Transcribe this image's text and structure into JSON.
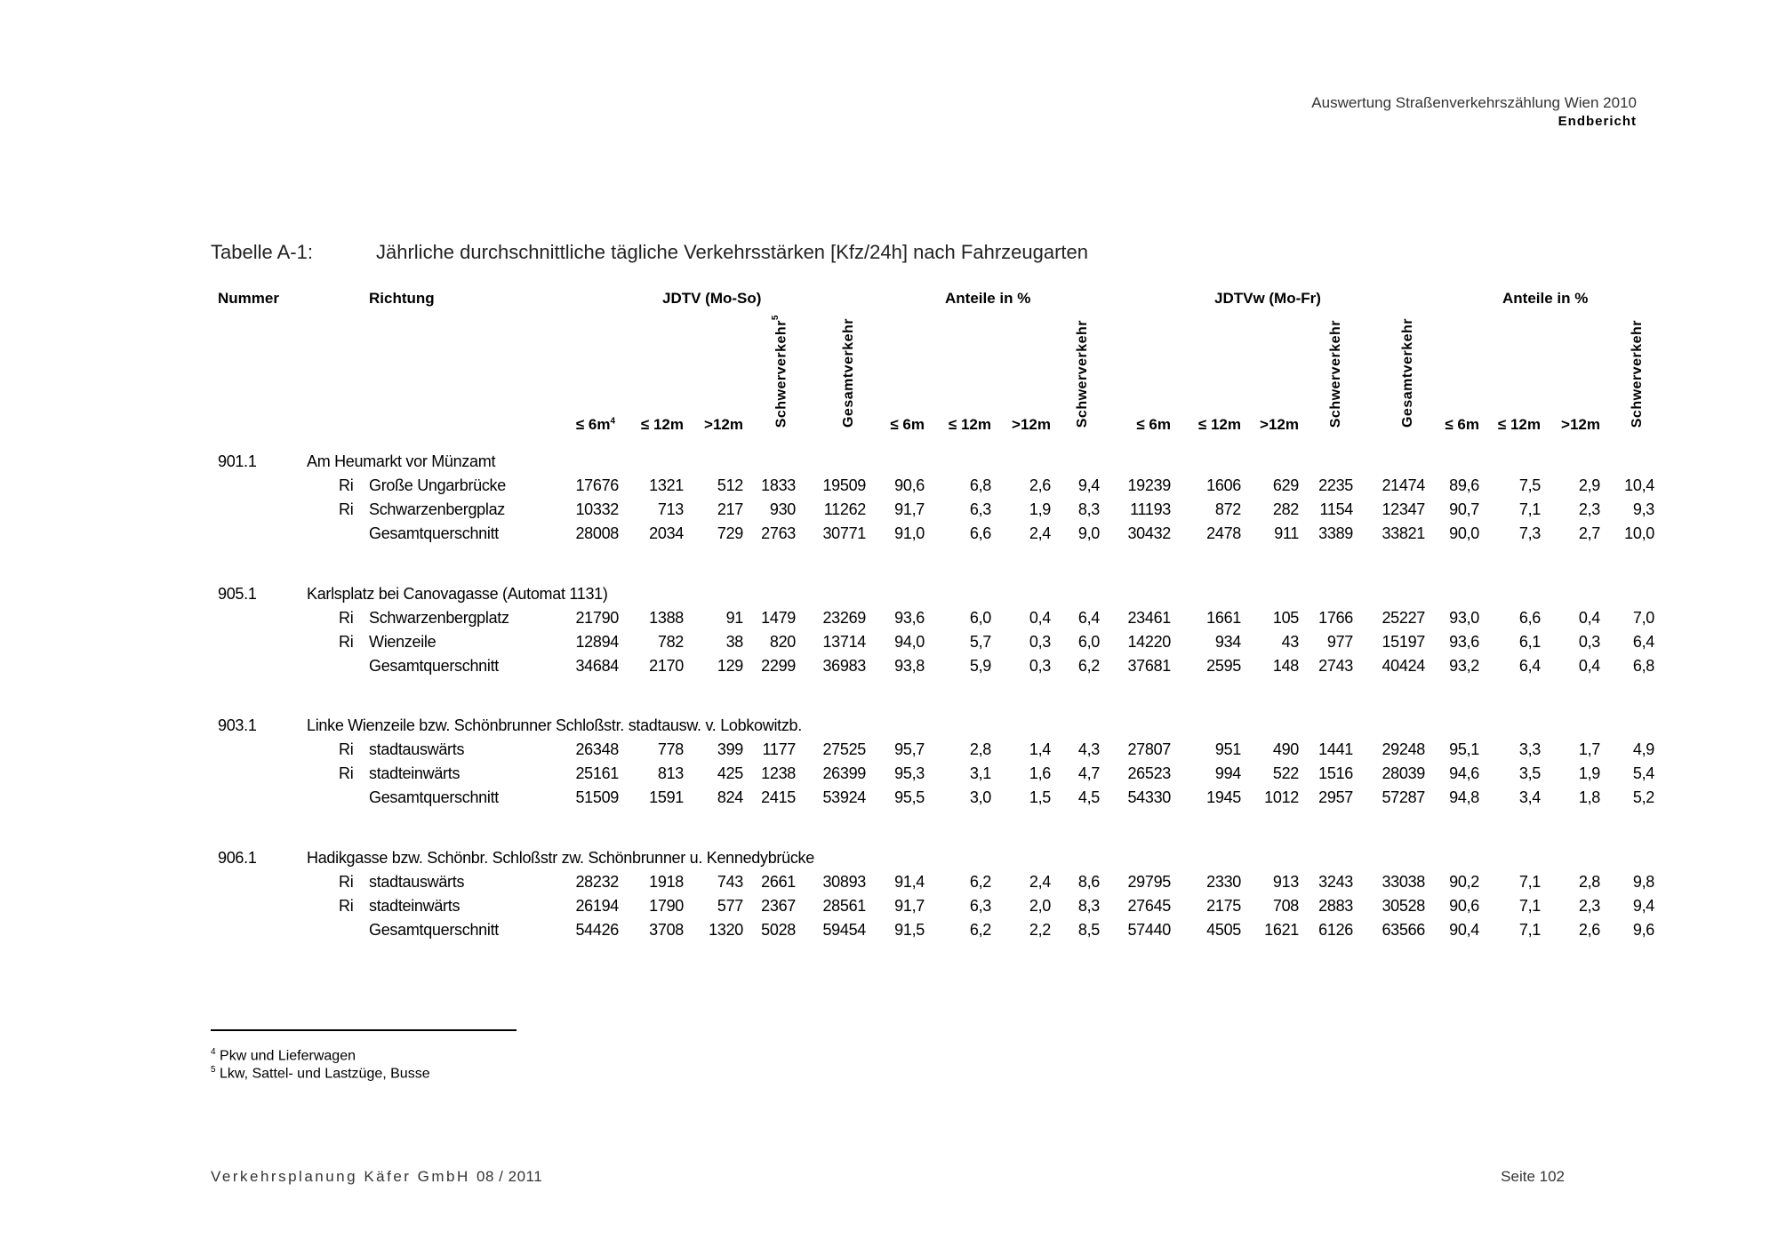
{
  "header": {
    "report_title": "Auswertung Straßenverkehrszählung Wien 2010",
    "report_subtitle": "Endbericht"
  },
  "table": {
    "caption_label": "Tabelle A-1:",
    "caption_text": "Jährliche durchschnittliche tägliche Verkehrsstärken [Kfz/24h] nach Fahrzeugarten",
    "col_nummer": "Nummer",
    "col_richtung": "Richtung",
    "group_jdtv": "JDTV (Mo-So)",
    "group_anteile1": "Anteile in %",
    "group_jdtvw": "JDTVw (Mo-Fr)",
    "group_anteile2": "Anteile in %",
    "subheaders": [
      "≤ 6m",
      "≤ 12m",
      ">12m",
      "Schwerverkehr",
      "Gesamtverkehr",
      "≤ 6m",
      "≤ 12m",
      ">12m",
      "Schwerverkehr",
      "≤ 6m",
      "≤ 12m",
      ">12m",
      "Schwerverkehr",
      "Gesamtverkehr",
      "≤ 6m",
      "≤ 12m",
      ">12m",
      "Schwerverkehr"
    ],
    "subheader_sups": [
      "4",
      "",
      "",
      "5",
      "",
      "",
      "",
      "",
      "",
      "",
      "",
      "",
      "",
      "",
      "",
      "",
      "",
      ""
    ],
    "groups": [
      {
        "nummer": "901.1",
        "name": "Am Heumarkt vor Münzamt",
        "rows": [
          {
            "ri": "Ri",
            "label": "Große Ungarbrücke",
            "values": [
              "17676",
              "1321",
              "512",
              "1833",
              "19509",
              "90,6",
              "6,8",
              "2,6",
              "9,4",
              "19239",
              "1606",
              "629",
              "2235",
              "21474",
              "89,6",
              "7,5",
              "2,9",
              "10,4"
            ]
          },
          {
            "ri": "Ri",
            "label": "Schwarzenbergplaz",
            "values": [
              "10332",
              "713",
              "217",
              "930",
              "11262",
              "91,7",
              "6,3",
              "1,9",
              "8,3",
              "11193",
              "872",
              "282",
              "1154",
              "12347",
              "90,7",
              "7,1",
              "2,3",
              "9,3"
            ]
          },
          {
            "ri": "",
            "label": "Gesamtquerschnitt",
            "values": [
              "28008",
              "2034",
              "729",
              "2763",
              "30771",
              "91,0",
              "6,6",
              "2,4",
              "9,0",
              "30432",
              "2478",
              "911",
              "3389",
              "33821",
              "90,0",
              "7,3",
              "2,7",
              "10,0"
            ]
          }
        ]
      },
      {
        "nummer": "905.1",
        "name": "Karlsplatz bei Canovagasse (Automat 1131)",
        "rows": [
          {
            "ri": "Ri",
            "label": "Schwarzenbergplatz",
            "values": [
              "21790",
              "1388",
              "91",
              "1479",
              "23269",
              "93,6",
              "6,0",
              "0,4",
              "6,4",
              "23461",
              "1661",
              "105",
              "1766",
              "25227",
              "93,0",
              "6,6",
              "0,4",
              "7,0"
            ]
          },
          {
            "ri": "Ri",
            "label": "Wienzeile",
            "values": [
              "12894",
              "782",
              "38",
              "820",
              "13714",
              "94,0",
              "5,7",
              "0,3",
              "6,0",
              "14220",
              "934",
              "43",
              "977",
              "15197",
              "93,6",
              "6,1",
              "0,3",
              "6,4"
            ]
          },
          {
            "ri": "",
            "label": "Gesamtquerschnitt",
            "values": [
              "34684",
              "2170",
              "129",
              "2299",
              "36983",
              "93,8",
              "5,9",
              "0,3",
              "6,2",
              "37681",
              "2595",
              "148",
              "2743",
              "40424",
              "93,2",
              "6,4",
              "0,4",
              "6,8"
            ]
          }
        ]
      },
      {
        "nummer": "903.1",
        "name": "Linke Wienzeile bzw. Schönbrunner Schloßstr. stadtausw. v. Lobkowitzb.",
        "rows": [
          {
            "ri": "Ri",
            "label": "stadtauswärts",
            "values": [
              "26348",
              "778",
              "399",
              "1177",
              "27525",
              "95,7",
              "2,8",
              "1,4",
              "4,3",
              "27807",
              "951",
              "490",
              "1441",
              "29248",
              "95,1",
              "3,3",
              "1,7",
              "4,9"
            ]
          },
          {
            "ri": "Ri",
            "label": "stadteinwärts",
            "values": [
              "25161",
              "813",
              "425",
              "1238",
              "26399",
              "95,3",
              "3,1",
              "1,6",
              "4,7",
              "26523",
              "994",
              "522",
              "1516",
              "28039",
              "94,6",
              "3,5",
              "1,9",
              "5,4"
            ]
          },
          {
            "ri": "",
            "label": "Gesamtquerschnitt",
            "values": [
              "51509",
              "1591",
              "824",
              "2415",
              "53924",
              "95,5",
              "3,0",
              "1,5",
              "4,5",
              "54330",
              "1945",
              "1012",
              "2957",
              "57287",
              "94,8",
              "3,4",
              "1,8",
              "5,2"
            ]
          }
        ]
      },
      {
        "nummer": "906.1",
        "name": "Hadikgasse bzw. Schönbr. Schloßstr zw. Schönbrunner  u. Kennedybrücke",
        "rows": [
          {
            "ri": "Ri",
            "label": "stadtauswärts",
            "values": [
              "28232",
              "1918",
              "743",
              "2661",
              "30893",
              "91,4",
              "6,2",
              "2,4",
              "8,6",
              "29795",
              "2330",
              "913",
              "3243",
              "33038",
              "90,2",
              "7,1",
              "2,8",
              "9,8"
            ]
          },
          {
            "ri": "Ri",
            "label": "stadteinwärts",
            "values": [
              "26194",
              "1790",
              "577",
              "2367",
              "28561",
              "91,7",
              "6,3",
              "2,0",
              "8,3",
              "27645",
              "2175",
              "708",
              "2883",
              "30528",
              "90,6",
              "7,1",
              "2,3",
              "9,4"
            ]
          },
          {
            "ri": "",
            "label": "Gesamtquerschnitt",
            "values": [
              "54426",
              "3708",
              "1320",
              "5028",
              "59454",
              "91,5",
              "6,2",
              "2,2",
              "8,5",
              "57440",
              "4505",
              "1621",
              "6126",
              "63566",
              "90,4",
              "7,1",
              "2,6",
              "9,6"
            ]
          }
        ]
      }
    ]
  },
  "footnotes": [
    {
      "mark": "4",
      "text": "Pkw und Lieferwagen"
    },
    {
      "mark": "5",
      "text": "Lkw, Sattel- und Lastzüge, Busse"
    }
  ],
  "footer": {
    "company": "Verkehrsplanung Käfer GmbH",
    "date": "08 / 2011",
    "page": "Seite 102"
  }
}
